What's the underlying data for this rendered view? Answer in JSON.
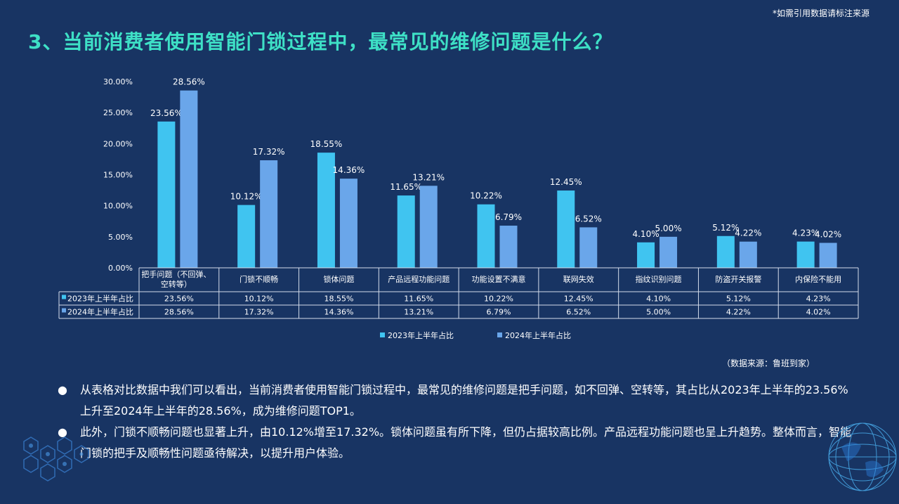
{
  "note": "*如需引用数据请标注来源",
  "title": "3、当前消费者使用智能门锁过程中，最常见的维修问题是什么？",
  "source": "（数据来源：鲁班到家）",
  "bullets": [
    "从表格对比数据中我们可以看出，当前消费者使用智能门锁过程中，最常见的维修问题是把手问题，如不回弹、空转等，其占比从2023年上半年的23.56%上升至2024年上半年的28.56%，成为维修问题TOP1。",
    "此外，门锁不顺畅问题也显著上升，由10.12%增至17.32%。锁体问题虽有所下降，但仍占据较高比例。产品远程功能问题也呈上升趋势。整体而言，智能门锁的把手及顺畅性问题亟待解决，以提升用户体验。"
  ],
  "colors": {
    "background": "#183463",
    "title": "#3ee0c6",
    "series_2023": "#40c4f0",
    "series_2024": "#6aa6ea"
  },
  "chart_data": {
    "type": "bar",
    "categories": [
      "把手问题（不回弹、空转等）",
      "门锁不顺畅",
      "锁体问题",
      "产品远程功能问题",
      "功能设置不满意",
      "联网失效",
      "指纹识别问题",
      "防盗开关报警",
      "内保险不能用"
    ],
    "series": [
      {
        "name": "2023年上半年占比",
        "values": [
          23.56,
          10.12,
          18.55,
          11.65,
          10.22,
          12.45,
          4.1,
          5.12,
          4.23
        ],
        "labels": [
          "23.56%",
          "10.12%",
          "18.55%",
          "11.65%",
          "10.22%",
          "12.45%",
          "4.10%",
          "5.12%",
          "4.23%"
        ]
      },
      {
        "name": "2024年上半年占比",
        "values": [
          28.56,
          17.32,
          14.36,
          13.21,
          6.79,
          6.52,
          5.0,
          4.22,
          4.02
        ],
        "labels": [
          "28.56%",
          "17.32%",
          "14.36%",
          "13.21%",
          "6.79%",
          "6.52%",
          "5.00%",
          "4.22%",
          "4.02%"
        ]
      }
    ],
    "yticks": [
      "0.00%",
      "5.00%",
      "10.00%",
      "15.00%",
      "20.00%",
      "25.00%",
      "30.00%"
    ],
    "ylim": [
      0,
      30
    ],
    "grid": false,
    "legend_position": "bottom",
    "data_table": true
  }
}
